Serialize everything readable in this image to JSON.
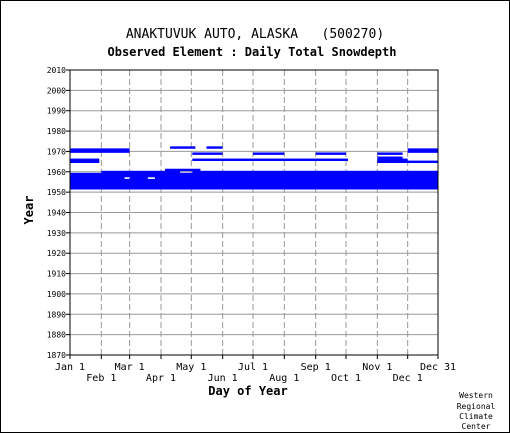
{
  "chart_data": {
    "type": "heatmap",
    "title": "ANAKTUVUK AUTO, ALASKA   (500270)",
    "subtitle": "Observed Element : Daily Total Snowdepth",
    "xlabel": "Day of Year",
    "ylabel": "Year",
    "ylim": [
      1870,
      2010
    ],
    "yticks": [
      1870,
      1880,
      1890,
      1900,
      1910,
      1920,
      1930,
      1940,
      1950,
      1960,
      1970,
      1980,
      1990,
      2000,
      2010
    ],
    "xlim": [
      1,
      365
    ],
    "xticks_top_row": [
      {
        "label": "Jan 1",
        "day": 1
      },
      {
        "label": "Mar 1",
        "day": 60
      },
      {
        "label": "May 1",
        "day": 121
      },
      {
        "label": "Jul 1",
        "day": 182
      },
      {
        "label": "Sep 1",
        "day": 244
      },
      {
        "label": "Nov 1",
        "day": 305
      },
      {
        "label": "Dec 31",
        "day": 365
      }
    ],
    "xticks_bottom_row": [
      {
        "label": "Feb 1",
        "day": 32
      },
      {
        "label": "Apr 1",
        "day": 91
      },
      {
        "label": "Jun 1",
        "day": 152
      },
      {
        "label": "Aug 1",
        "day": 213
      },
      {
        "label": "Oct 1",
        "day": 274
      },
      {
        "label": "Dec 1",
        "day": 335
      }
    ],
    "grid": true,
    "series_color": "#0000ff",
    "data_segments": [
      {
        "year": 1952,
        "start": 1,
        "end": 365
      },
      {
        "year": 1953,
        "start": 1,
        "end": 365
      },
      {
        "year": 1954,
        "start": 1,
        "end": 365
      },
      {
        "year": 1955,
        "start": 1,
        "end": 365
      },
      {
        "year": 1956,
        "start": 1,
        "end": 365
      },
      {
        "year": 1957,
        "start": 1,
        "end": 55
      },
      {
        "year": 1957,
        "start": 60,
        "end": 78
      },
      {
        "year": 1957,
        "start": 85,
        "end": 365
      },
      {
        "year": 1958,
        "start": 1,
        "end": 365
      },
      {
        "year": 1959,
        "start": 1,
        "end": 365
      },
      {
        "year": 1960,
        "start": 32,
        "end": 110
      },
      {
        "year": 1960,
        "start": 122,
        "end": 365
      },
      {
        "year": 1961,
        "start": 95,
        "end": 130
      },
      {
        "year": 1965,
        "start": 1,
        "end": 30
      },
      {
        "year": 1965,
        "start": 305,
        "end": 365
      },
      {
        "year": 1966,
        "start": 1,
        "end": 30
      },
      {
        "year": 1966,
        "start": 122,
        "end": 276
      },
      {
        "year": 1966,
        "start": 305,
        "end": 335
      },
      {
        "year": 1967,
        "start": 305,
        "end": 330
      },
      {
        "year": 1969,
        "start": 122,
        "end": 152
      },
      {
        "year": 1969,
        "start": 182,
        "end": 213
      },
      {
        "year": 1969,
        "start": 244,
        "end": 274
      },
      {
        "year": 1969,
        "start": 305,
        "end": 330
      },
      {
        "year": 1970,
        "start": 1,
        "end": 60
      },
      {
        "year": 1970,
        "start": 335,
        "end": 365
      },
      {
        "year": 1971,
        "start": 1,
        "end": 60
      },
      {
        "year": 1971,
        "start": 335,
        "end": 365
      },
      {
        "year": 1972,
        "start": 100,
        "end": 125
      },
      {
        "year": 1972,
        "start": 136,
        "end": 152
      }
    ]
  },
  "footer": {
    "line1": "Western",
    "line2": "Regional",
    "line3": "Climate",
    "line4": "Center"
  }
}
